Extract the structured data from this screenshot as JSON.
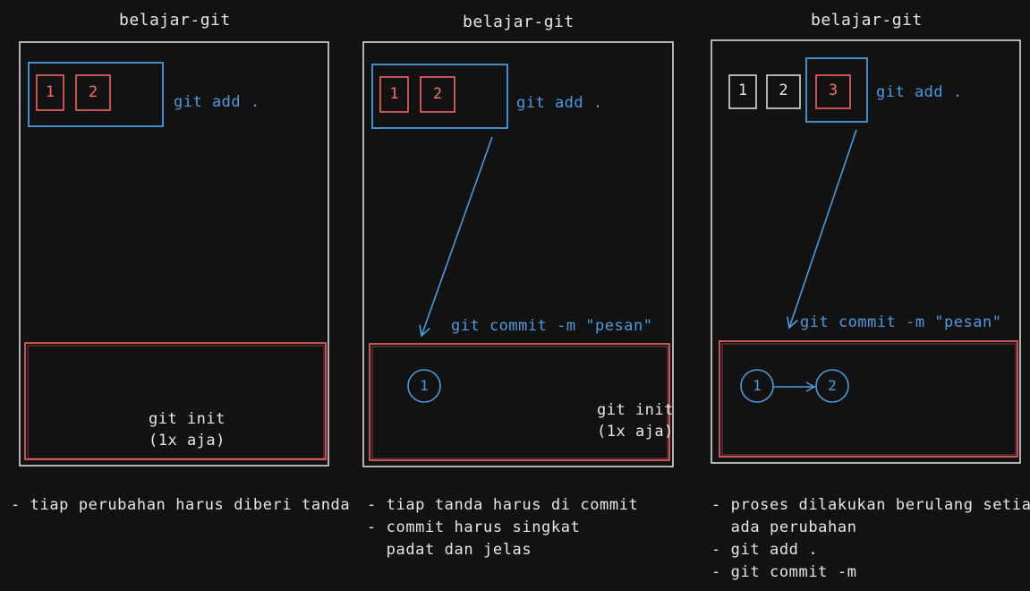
{
  "colors": {
    "background": "#121212",
    "white": "#e6e6e6",
    "blue": "#4a9be0",
    "red": "#ff6b6b"
  },
  "panels": [
    {
      "title": "belajar-git",
      "staged_files": [
        "1",
        "2"
      ],
      "staging_label": "git add .",
      "repo_label_line1": "git init",
      "repo_label_line2": "(1x aja)",
      "notes": [
        "- tiap perubahan harus diberi tanda"
      ]
    },
    {
      "title": "belajar-git",
      "staged_files": [
        "1",
        "2"
      ],
      "staging_label": "git add .",
      "commit_label": "git commit -m \"pesan\"",
      "commits": [
        "1"
      ],
      "repo_label_line1": "git init",
      "repo_label_line2": "(1x aja)",
      "notes": [
        "- tiap tanda harus di commit",
        "- commit harus singkat",
        "  padat dan jelas"
      ]
    },
    {
      "title": "belajar-git",
      "committed_files": [
        "1",
        "2"
      ],
      "staged_files": [
        "3"
      ],
      "staging_label": "git add .",
      "commit_label": "git commit -m \"pesan\"",
      "commits": [
        "1",
        "2"
      ],
      "notes": [
        "- proses dilakukan berulang setiap",
        "  ada perubahan",
        "- git add .",
        "- git commit -m"
      ]
    }
  ]
}
